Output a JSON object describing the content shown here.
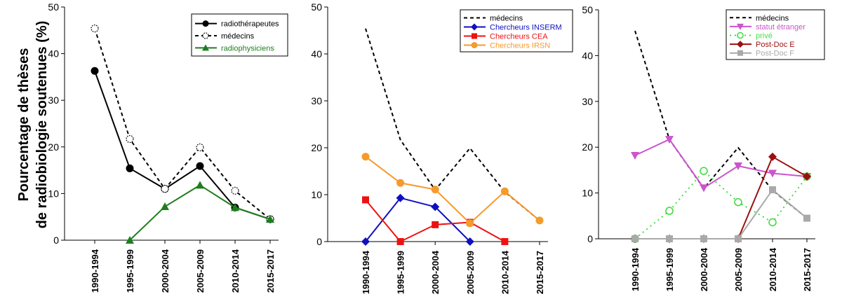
{
  "ylabel_line1": "Pourcentage de thèses",
  "ylabel_line2": "de radiobiologie soutenues (%)",
  "chart_data": [
    {
      "type": "line",
      "categories": [
        "1990-1994",
        "1995-1999",
        "2000-2004",
        "2005-2009",
        "2010-2014",
        "2015-2017"
      ],
      "ylim": [
        0,
        50
      ],
      "yticks": [
        "0",
        "10",
        "20",
        "30",
        "40",
        "50"
      ],
      "grid": false,
      "legend_position": "top-right",
      "series": [
        {
          "name": "radiothérapeutes",
          "values": [
            36.3,
            15.4,
            11,
            15.9,
            7,
            4.5
          ],
          "color": "#000000",
          "dash": "solid",
          "marker": "circle-filled"
        },
        {
          "name": "médecins",
          "values": [
            45.4,
            21.7,
            11,
            19.9,
            10.6,
            4.5
          ],
          "color": "#000000",
          "dash": "dashed",
          "marker": "circle-dotted"
        },
        {
          "name": "radiophysiciens",
          "values": [
            null,
            0,
            7.2,
            11.8,
            7,
            4.5
          ],
          "color": "#1e7e1e",
          "dash": "solid",
          "marker": "triangle"
        }
      ]
    },
    {
      "type": "line",
      "categories": [
        "1990-1994",
        "1995-1999",
        "2000-2004",
        "2005-2009",
        "2010-2014",
        "2015-2017"
      ],
      "ylim": [
        0,
        50
      ],
      "yticks": [
        "0",
        "10",
        "20",
        "30",
        "40",
        "50"
      ],
      "grid": false,
      "legend_position": "top-right",
      "series": [
        {
          "name": "médecins",
          "values": [
            45.4,
            21.7,
            11,
            19.9,
            10.6,
            4.5
          ],
          "color": "#000000",
          "dash": "dashed",
          "marker": "none"
        },
        {
          "name": "Chercheurs INSERM",
          "values": [
            0,
            9.3,
            7.4,
            0,
            null,
            null
          ],
          "color": "#1010c0",
          "dash": "solid",
          "marker": "diamond"
        },
        {
          "name": "Chercheurs CEA",
          "values": [
            8.9,
            0,
            3.6,
            4.1,
            0,
            null
          ],
          "color": "#ee1111",
          "dash": "solid",
          "marker": "square"
        },
        {
          "name": "Chercheurs IRSN",
          "values": [
            18.1,
            12.5,
            11.1,
            3.9,
            10.7,
            4.5
          ],
          "color": "#f59a2c",
          "dash": "solid",
          "marker": "circle-filled"
        }
      ]
    },
    {
      "type": "line",
      "categories": [
        "1990-1994",
        "1995-1999",
        "2000-2004",
        "2005-2009",
        "2010-2014",
        "2015-2017"
      ],
      "ylim": [
        0,
        50
      ],
      "yticks": [
        "0",
        "10",
        "20",
        "30",
        "40",
        "50"
      ],
      "grid": false,
      "legend_position": "top-right",
      "series": [
        {
          "name": "médecins",
          "values": [
            45.4,
            21.7,
            11,
            19.9,
            10.6,
            4.5
          ],
          "color": "#000000",
          "dash": "dashed",
          "marker": "none"
        },
        {
          "name": "statut étranger",
          "values": [
            18.2,
            21.7,
            11.1,
            15.9,
            14.3,
            13.6
          ],
          "color": "#cc55cc",
          "dash": "solid",
          "marker": "triangle-down"
        },
        {
          "name": "privé",
          "values": [
            0,
            6.1,
            14.8,
            8,
            3.6,
            13.6
          ],
          "color": "#44dd44",
          "dash": "dotted",
          "marker": "circle-open"
        },
        {
          "name": "Post-Doc E",
          "values": [
            0,
            0,
            0,
            0,
            17.9,
            13.6
          ],
          "color": "#9b1010",
          "dash": "solid",
          "marker": "diamond"
        },
        {
          "name": "Post-Doc F",
          "values": [
            0,
            0,
            0,
            0,
            10.7,
            4.5
          ],
          "color": "#a9a9a9",
          "dash": "solid",
          "marker": "square"
        }
      ]
    }
  ]
}
